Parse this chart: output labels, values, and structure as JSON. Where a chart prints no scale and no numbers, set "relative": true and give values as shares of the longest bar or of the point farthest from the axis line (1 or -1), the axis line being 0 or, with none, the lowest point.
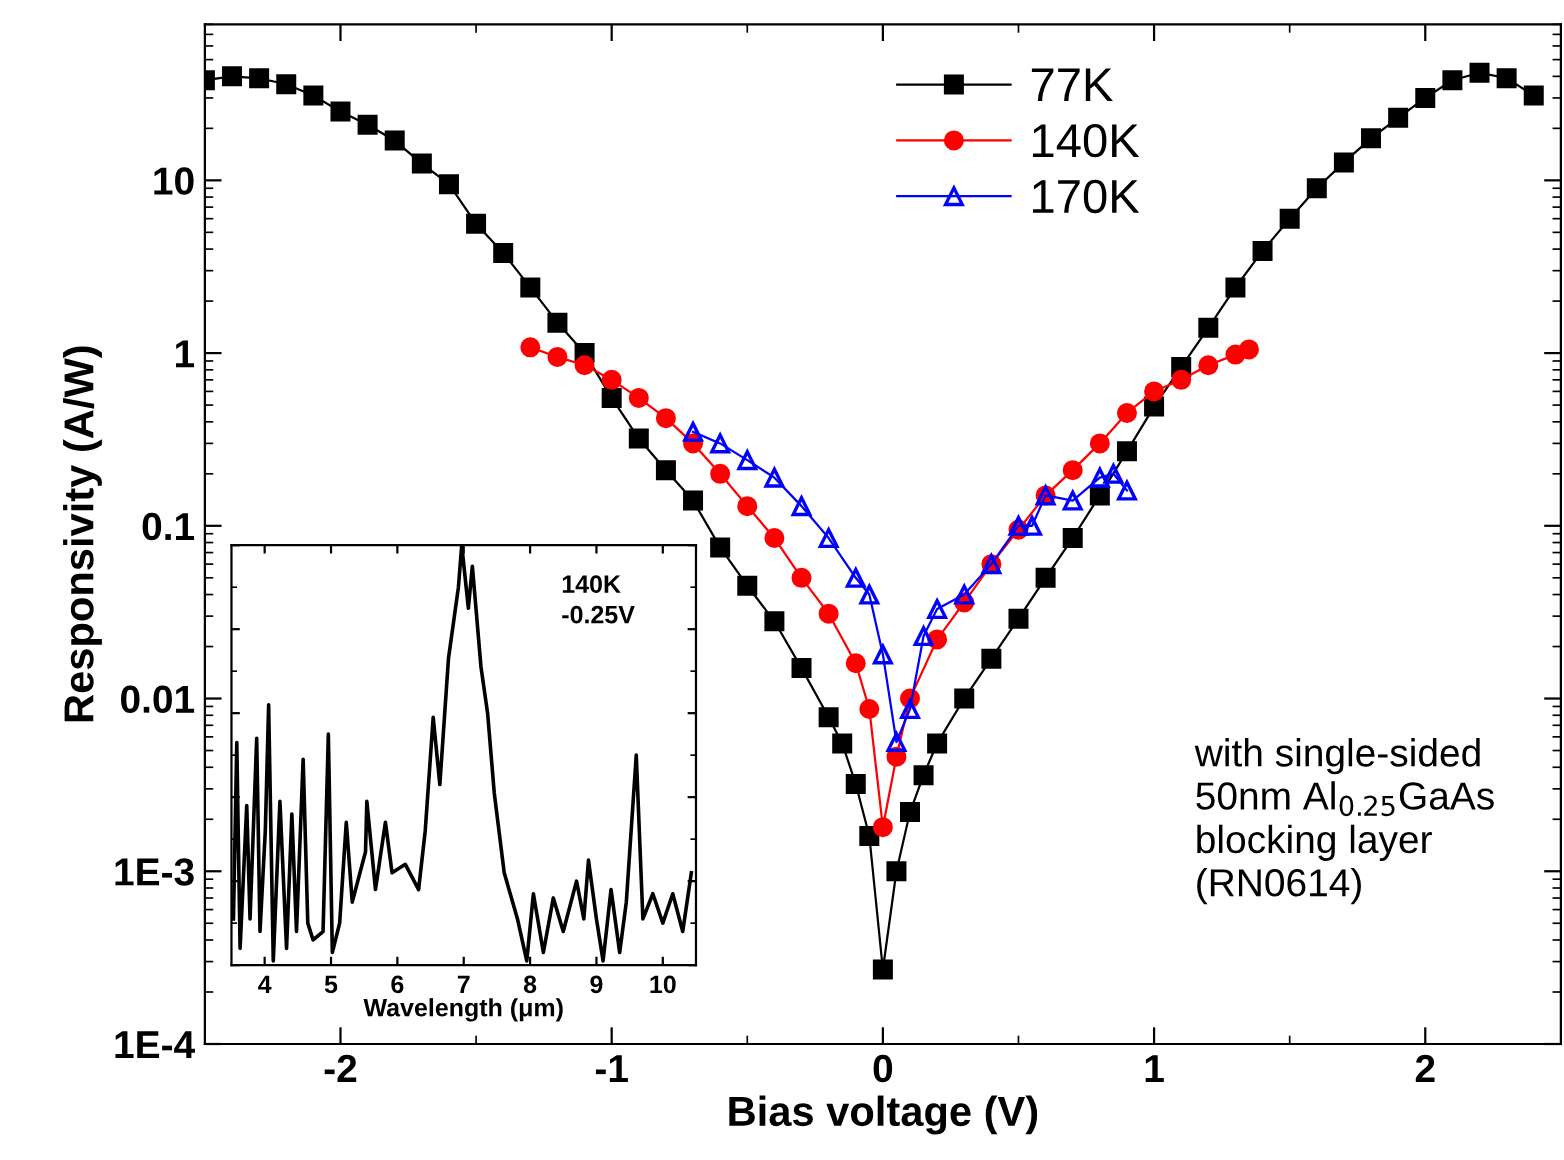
{
  "chart_data": [
    {
      "type": "line",
      "xlabel": "Bias voltage (V)",
      "ylabel": "Responsivity (A/W)",
      "log": "y",
      "xlim": [
        -2.5,
        2.5
      ],
      "xticks": [
        -2,
        -1,
        0,
        1,
        2
      ],
      "ylim": [
        0.0001,
        80
      ],
      "yticks": [
        {
          "value": 10,
          "label": "10"
        },
        {
          "value": 1,
          "label": "1"
        },
        {
          "value": 0.1,
          "label": "0.1"
        },
        {
          "value": 0.01,
          "label": "0.01"
        },
        {
          "value": 0.001,
          "label": "1E-3"
        },
        {
          "value": 0.0001,
          "label": "1E-4"
        }
      ],
      "grid": false,
      "legend": "top",
      "annotations": [
        "with single-sided\n50nm Al$_{0.25}$GaAs\nblocking layer\n(RN0614)"
      ],
      "series": [
        {
          "name": "77K",
          "color": "#000000",
          "marker": "square",
          "x": [
            -2.5,
            -2.4,
            -2.3,
            -2.2,
            -2.1,
            -2.0,
            -1.9,
            -1.8,
            -1.7,
            -1.6,
            -1.5,
            -1.4,
            -1.3,
            -1.2,
            -1.1,
            -1.0,
            -0.9,
            -0.8,
            -0.7,
            -0.6,
            -0.5,
            -0.4,
            -0.3,
            -0.2,
            -0.15,
            -0.1,
            -0.05,
            0,
            0.05,
            0.1,
            0.15,
            0.2,
            0.3,
            0.4,
            0.5,
            0.6,
            0.7,
            0.8,
            0.9,
            1.0,
            1.1,
            1.2,
            1.3,
            1.4,
            1.5,
            1.6,
            1.7,
            1.8,
            1.9,
            2.0,
            2.1,
            2.2,
            2.3,
            2.4
          ],
          "values": [
            38,
            40,
            39,
            36,
            31,
            25,
            21,
            17,
            12.5,
            9.5,
            5.6,
            3.8,
            2.4,
            1.5,
            1.0,
            0.55,
            0.32,
            0.21,
            0.14,
            0.075,
            0.045,
            0.028,
            0.015,
            0.0078,
            0.0055,
            0.0032,
            0.0016,
            0.00027,
            0.001,
            0.0022,
            0.0036,
            0.0055,
            0.01,
            0.017,
            0.029,
            0.05,
            0.085,
            0.15,
            0.27,
            0.49,
            0.83,
            1.4,
            2.4,
            3.9,
            6.0,
            9.0,
            12.7,
            17.5,
            23,
            30,
            38,
            42,
            39,
            31
          ]
        },
        {
          "name": "140K",
          "color": "#ff0000",
          "marker": "circle",
          "x": [
            -1.3,
            -1.2,
            -1.1,
            -1.0,
            -0.9,
            -0.8,
            -0.7,
            -0.6,
            -0.5,
            -0.4,
            -0.3,
            -0.2,
            -0.1,
            -0.05,
            0,
            0.05,
            0.1,
            0.2,
            0.3,
            0.4,
            0.5,
            0.6,
            0.7,
            0.8,
            0.9,
            1.0,
            1.1,
            1.2,
            1.3,
            1.35
          ],
          "values": [
            1.08,
            0.95,
            0.85,
            0.7,
            0.55,
            0.42,
            0.3,
            0.2,
            0.13,
            0.085,
            0.05,
            0.031,
            0.016,
            0.0087,
            0.0018,
            0.0046,
            0.01,
            0.022,
            0.036,
            0.06,
            0.095,
            0.15,
            0.21,
            0.3,
            0.45,
            0.6,
            0.7,
            0.85,
            0.98,
            1.05
          ]
        },
        {
          "name": "170K",
          "color": "#0000ff",
          "marker": "triangle",
          "x": [
            -0.7,
            -0.6,
            -0.5,
            -0.4,
            -0.3,
            -0.2,
            -0.1,
            -0.05,
            0,
            0.05,
            0.1,
            0.15,
            0.2,
            0.3,
            0.4,
            0.5,
            0.55,
            0.6,
            0.7,
            0.8,
            0.85,
            0.9
          ],
          "values": [
            0.35,
            0.3,
            0.24,
            0.19,
            0.13,
            0.085,
            0.05,
            0.04,
            0.018,
            0.0056,
            0.0087,
            0.023,
            0.033,
            0.04,
            0.06,
            0.1,
            0.1,
            0.15,
            0.14,
            0.19,
            0.2,
            0.16
          ]
        }
      ]
    },
    {
      "type": "line",
      "relative": true,
      "xlabel": "Wavelength (μm)",
      "xlim": [
        3.5,
        10.5
      ],
      "xticks": [
        4,
        5,
        6,
        7,
        8,
        9,
        10
      ],
      "tick_labels": "x",
      "grid": false,
      "annotations": [
        "140K",
        "-0.25V"
      ],
      "series": [
        {
          "color": "#000000",
          "x": [
            3.53,
            3.58,
            3.63,
            3.73,
            3.78,
            3.88,
            3.93,
            4.01,
            4.06,
            4.13,
            4.23,
            4.33,
            4.41,
            4.48,
            4.58,
            4.65,
            4.73,
            4.88,
            4.96,
            5.02,
            5.13,
            5.23,
            5.32,
            5.52,
            5.54,
            5.67,
            5.82,
            5.92,
            6.12,
            6.32,
            6.42,
            6.54,
            6.64,
            6.77,
            6.92,
            6.97,
            7.07,
            7.13,
            7.26,
            7.36,
            7.46,
            7.61,
            7.81,
            7.95,
            8.05,
            8.2,
            8.35,
            8.5,
            8.7,
            8.81,
            8.88,
            9.0,
            9.1,
            9.22,
            9.35,
            9.45,
            9.6,
            9.7,
            9.85,
            10.0,
            10.15,
            10.3,
            10.43
          ],
          "values": [
            0.11,
            0.53,
            0.04,
            0.38,
            0.11,
            0.54,
            0.08,
            0.32,
            0.62,
            0.01,
            0.39,
            0.04,
            0.36,
            0.08,
            0.49,
            0.1,
            0.06,
            0.08,
            0.55,
            0.03,
            0.1,
            0.34,
            0.15,
            0.27,
            0.39,
            0.18,
            0.34,
            0.22,
            0.24,
            0.18,
            0.32,
            0.59,
            0.43,
            0.73,
            0.9,
            1,
            0.85,
            0.95,
            0.71,
            0.6,
            0.41,
            0.22,
            0.11,
            0.01,
            0.17,
            0.03,
            0.16,
            0.08,
            0.2,
            0.11,
            0.25,
            0.11,
            0.01,
            0.18,
            0.03,
            0.15,
            0.5,
            0.11,
            0.17,
            0.1,
            0.17,
            0.08,
            0.22
          ]
        }
      ]
    }
  ]
}
